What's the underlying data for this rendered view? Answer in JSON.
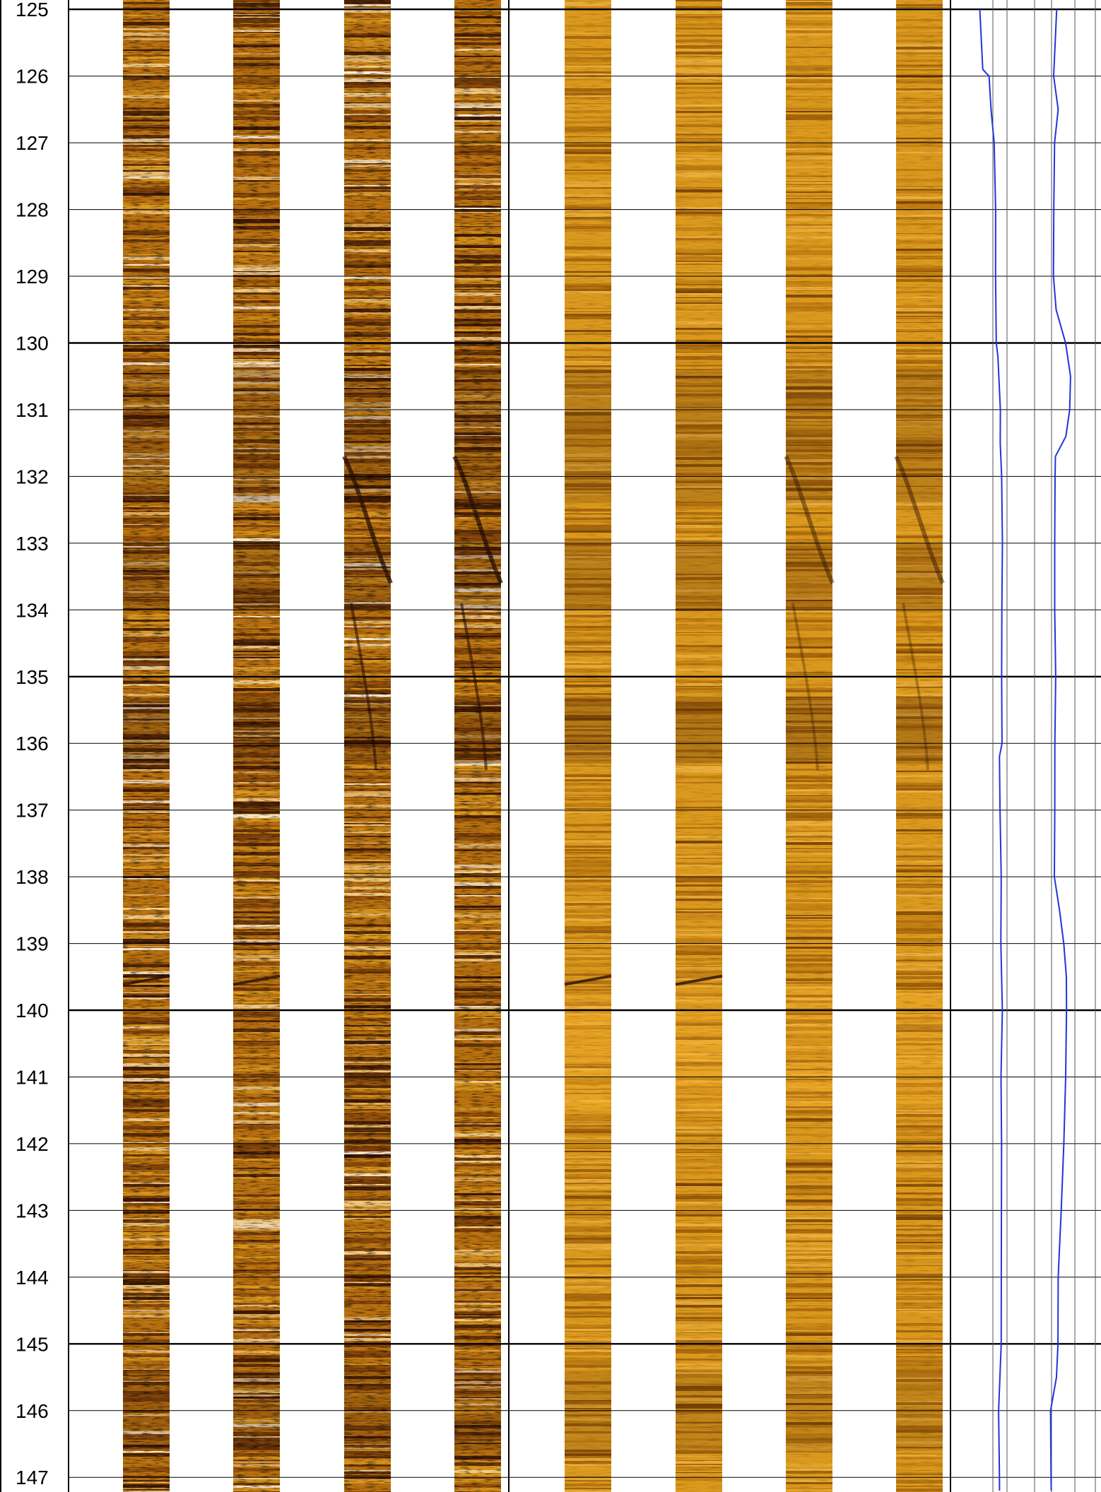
{
  "chart_data": {
    "type": "borehole-image-log",
    "title": "",
    "ylabel": "",
    "depth_axis": {
      "ticks": [
        125,
        126,
        127,
        128,
        129,
        130,
        131,
        132,
        133,
        134,
        135,
        136,
        137,
        138,
        139,
        140,
        141,
        142,
        143,
        144,
        145,
        146,
        147
      ],
      "ylim": [
        124.86,
        147.22
      ],
      "major_every": 5,
      "grid": true
    },
    "tracks": [
      {
        "name": "",
        "kind": "dynamic-image",
        "count": 4
      },
      {
        "name": "",
        "kind": "static-image",
        "count": 4
      },
      {
        "name": "",
        "kind": "curve-pair"
      }
    ],
    "curve": {
      "color": "#2233dd",
      "series": [
        {
          "name": "",
          "depth": [
            125,
            125.9,
            126,
            126.5,
            127,
            128,
            129,
            130,
            130.2,
            131,
            131.5,
            132,
            133,
            134,
            135,
            136,
            136.2,
            137,
            138,
            139,
            140,
            141,
            142,
            143,
            144,
            145,
            146,
            147,
            147.2
          ],
          "value": [
            0.2,
            0.22,
            0.26,
            0.27,
            0.29,
            0.3,
            0.3,
            0.3,
            0.32,
            0.33,
            0.33,
            0.34,
            0.34,
            0.34,
            0.34,
            0.34,
            0.32,
            0.33,
            0.34,
            0.34,
            0.34,
            0.34,
            0.34,
            0.34,
            0.34,
            0.34,
            0.32,
            0.32,
            0.32
          ]
        },
        {
          "name": "",
          "depth": [
            125,
            126,
            126.5,
            127,
            128,
            129,
            129.5,
            130,
            130.5,
            131,
            131.4,
            131.7,
            132,
            133,
            134,
            135,
            136,
            137,
            138,
            138.5,
            139,
            139.5,
            140,
            141,
            142,
            143,
            144,
            145,
            145.5,
            146,
            147,
            147.2
          ],
          "value": [
            0.7,
            0.69,
            0.71,
            0.69,
            0.69,
            0.69,
            0.7,
            0.76,
            0.8,
            0.79,
            0.77,
            0.7,
            0.69,
            0.69,
            0.69,
            0.7,
            0.69,
            0.69,
            0.69,
            0.72,
            0.75,
            0.77,
            0.77,
            0.76,
            0.75,
            0.74,
            0.72,
            0.71,
            0.7,
            0.67,
            0.67,
            0.67
          ]
        }
      ]
    },
    "image_palette": {
      "dynamic": [
        "#3a1604",
        "#7a3c08",
        "#b9700f",
        "#dc9a1e",
        "#f5d08a",
        "#fff3dd"
      ],
      "static": [
        "#7a4404",
        "#a2620b",
        "#c07d12",
        "#db9a1e",
        "#ebb040"
      ]
    }
  }
}
